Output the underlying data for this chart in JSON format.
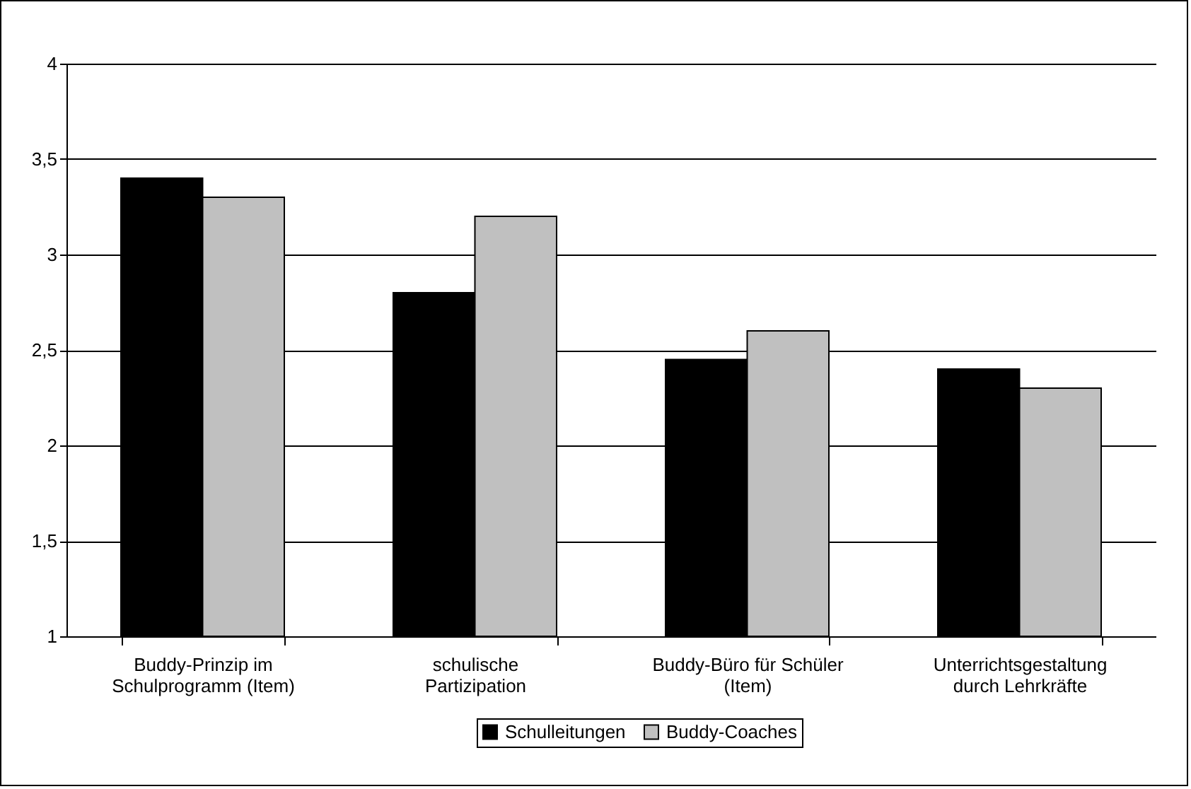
{
  "chart_data": {
    "type": "bar",
    "categories": [
      "Buddy-Prinzip im\nSchulprogramm (Item)",
      "schulische\nPartizipation",
      "Buddy-Büro für Schüler\n(Item)",
      "Unterrichtsgestaltung\ndurch Lehrkräfte"
    ],
    "series": [
      {
        "name": "Schulleitungen",
        "color": "#000000",
        "values": [
          3.4,
          2.8,
          2.45,
          2.4
        ]
      },
      {
        "name": "Buddy-Coaches",
        "color": "#c0c0c0",
        "values": [
          3.3,
          3.2,
          2.6,
          2.3
        ]
      }
    ],
    "ylim": [
      1,
      4
    ],
    "yticks": [
      1,
      {
        "value": 1.5,
        "label": "1,5"
      },
      2,
      {
        "value": 2.5,
        "label": "2,5"
      },
      3,
      {
        "value": 3.5,
        "label": "3,5"
      },
      4
    ],
    "grid": "y",
    "legend": "bottom"
  }
}
